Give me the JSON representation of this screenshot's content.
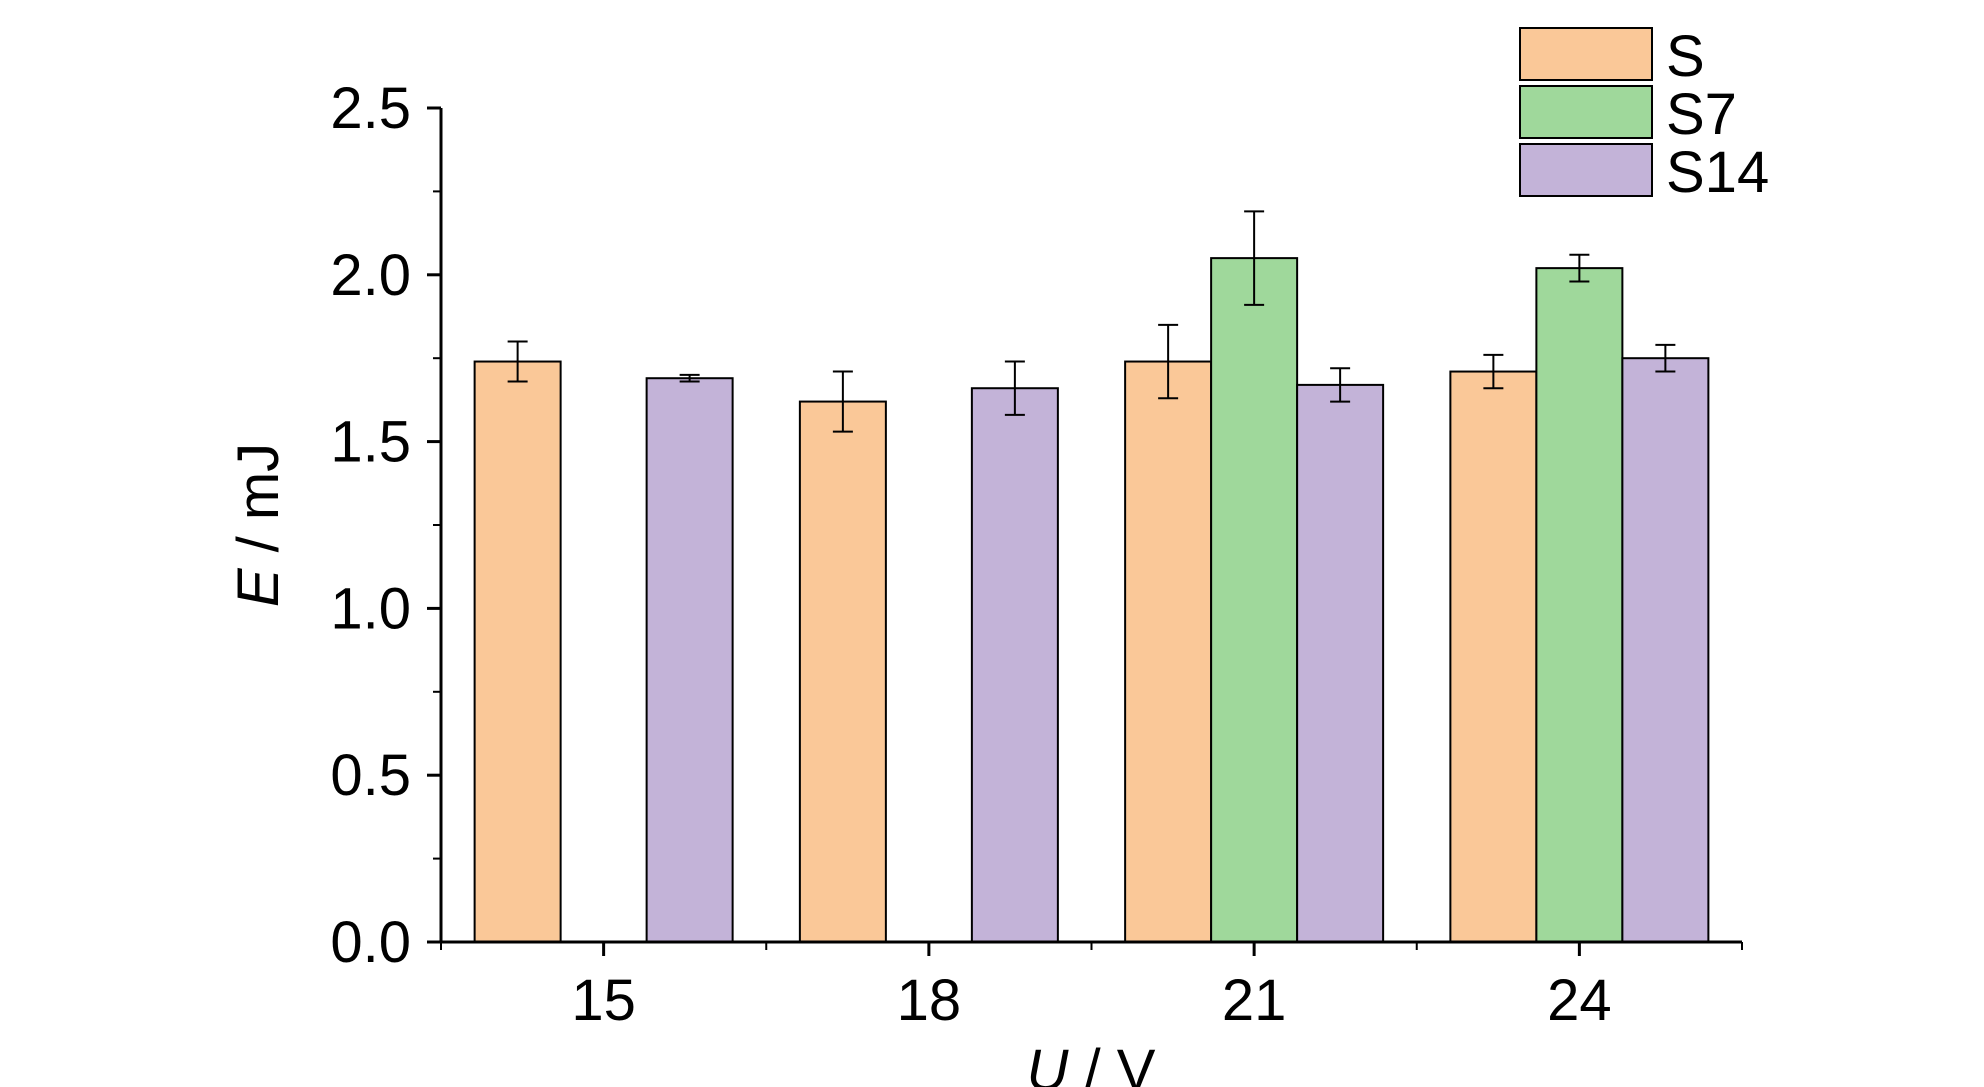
{
  "chart_data": {
    "type": "bar",
    "categories": [
      "15",
      "18",
      "21",
      "24"
    ],
    "xlabel": {
      "symbol": "U",
      "unit": " / V"
    },
    "ylabel": {
      "symbol": "E",
      "unit": " / mJ"
    },
    "ylim": [
      0,
      2.5
    ],
    "yticks": [
      "0.0",
      "0.5",
      "1.0",
      "1.5",
      "2.0",
      "2.5"
    ],
    "grid": false,
    "legend_position": "top-right",
    "series": [
      {
        "name": "S",
        "color": "#FAC898",
        "values": [
          1.74,
          1.62,
          1.74,
          1.71
        ],
        "errors": [
          0.06,
          0.09,
          0.11,
          0.05
        ]
      },
      {
        "name": "S7",
        "color": "#9FD89B",
        "values": [
          null,
          null,
          2.05,
          2.02
        ],
        "errors": [
          null,
          null,
          0.14,
          0.04
        ]
      },
      {
        "name": "S14",
        "color": "#C3B3D8",
        "values": [
          1.69,
          1.66,
          1.67,
          1.75
        ],
        "errors": [
          0.01,
          0.08,
          0.05,
          0.04
        ]
      }
    ]
  }
}
